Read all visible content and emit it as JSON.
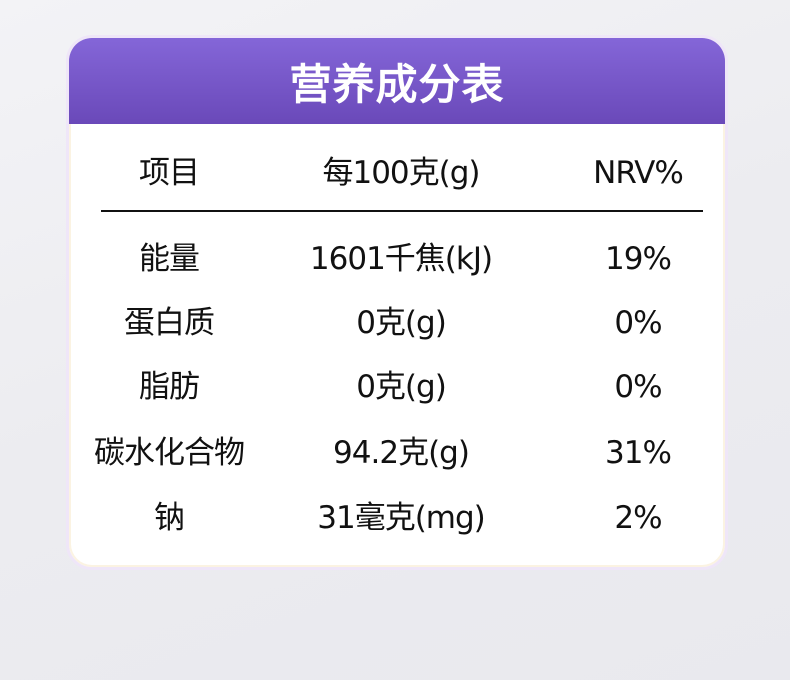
{
  "title": "营养成分表",
  "headers": [
    "项目",
    "每100克(g)",
    "NRV%"
  ],
  "rows": [
    [
      "能量",
      "1601千焦(kJ)",
      "19%"
    ],
    [
      "蛋白质",
      "0克(g)",
      "0%"
    ],
    [
      "脂肪",
      "0克(g)",
      "0%"
    ],
    [
      "碳水化合物",
      "94.2克(g)",
      "31%"
    ],
    [
      "钠",
      "31毫克(mg)",
      "2%"
    ]
  ],
  "colors": {
    "header_top": "#8466d8",
    "header_bottom": "#6a49b9"
  }
}
